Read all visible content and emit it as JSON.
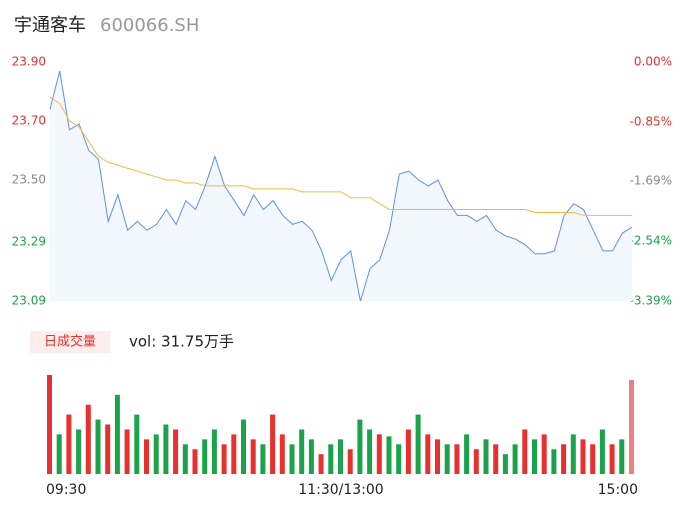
{
  "chart_data": {
    "type": "line",
    "title": "宇通客车",
    "subtitle": "600066.SH",
    "x": [
      0,
      4,
      8,
      12,
      16,
      20,
      24,
      28,
      32,
      36,
      40,
      44,
      48,
      52,
      56,
      60,
      64,
      68,
      72,
      76,
      80,
      84,
      88,
      92,
      96,
      100,
      104,
      108,
      112,
      116,
      120,
      124,
      128,
      132,
      136,
      140,
      144,
      148,
      152,
      156,
      160,
      164,
      168,
      172,
      176,
      180,
      184,
      188,
      192,
      196,
      200,
      204,
      208,
      212,
      216,
      220,
      224,
      228,
      232,
      236,
      240
    ],
    "xlim": [
      0,
      240
    ],
    "xticks": [
      {
        "value": 0,
        "label": "09:30"
      },
      {
        "value": 120,
        "label": "11:30/13:00"
      },
      {
        "value": 240,
        "label": "15:00"
      }
    ],
    "series": [
      {
        "color": "#5b8ff9",
        "values": [
          23.74,
          23.87,
          23.67,
          23.69,
          23.6,
          23.57,
          23.36,
          23.45,
          23.33,
          23.36,
          23.33,
          23.35,
          23.4,
          23.35,
          23.43,
          23.4,
          23.48,
          23.58,
          23.48,
          23.43,
          23.38,
          23.45,
          23.4,
          23.43,
          23.38,
          23.35,
          23.36,
          23.33,
          23.26,
          23.16,
          23.23,
          23.26,
          23.09,
          23.2,
          23.23,
          23.33,
          23.52,
          23.53,
          23.5,
          23.48,
          23.5,
          23.43,
          23.38,
          23.38,
          23.36,
          23.38,
          23.33,
          23.31,
          23.3,
          23.28,
          23.25,
          23.25,
          23.26,
          23.38,
          23.42,
          23.4,
          23.33,
          23.26,
          23.26,
          23.32,
          23.34
        ]
      },
      {
        "color": "#f5b942",
        "values": [
          23.78,
          23.76,
          23.7,
          23.68,
          23.63,
          23.58,
          23.56,
          23.55,
          23.54,
          23.53,
          23.52,
          23.51,
          23.5,
          23.5,
          23.49,
          23.49,
          23.48,
          23.48,
          23.48,
          23.48,
          23.48,
          23.47,
          23.47,
          23.47,
          23.47,
          23.47,
          23.46,
          23.46,
          23.46,
          23.46,
          23.46,
          23.44,
          23.44,
          23.44,
          23.42,
          23.4,
          23.4,
          23.4,
          23.4,
          23.4,
          23.4,
          23.4,
          23.4,
          23.4,
          23.4,
          23.4,
          23.4,
          23.4,
          23.4,
          23.4,
          23.39,
          23.39,
          23.39,
          23.39,
          23.39,
          23.38,
          23.38,
          23.38,
          23.38,
          23.38,
          23.38
        ]
      }
    ],
    "ylim": [
      23.09,
      23.9
    ],
    "yticks": [
      {
        "value": 23.9,
        "label": "23.90"
      },
      {
        "value": 23.7,
        "label": "23.70"
      },
      {
        "value": 23.5,
        "label": "23.50"
      },
      23.29,
      23.09
    ],
    "y2lim": [
      -3.39,
      0
    ],
    "y2ticks": [
      {
        "value": 0,
        "label": "0.00%"
      },
      {
        "value": -0.85,
        "label": "-0.85%"
      },
      {
        "value": -1.69,
        "label": "-1.69%"
      },
      {
        "value": -2.54,
        "label": "-2.54%"
      },
      {
        "value": -3.39,
        "label": "-3.39%"
      }
    ],
    "tick_colors": [
      "#e8312f",
      "#e8312f",
      "#888888",
      "#1aa34a",
      "#1aa34a"
    ],
    "volume": {
      "label": "日成交量",
      "text": "vol: 31.75万手",
      "ylim": [
        0,
        100
      ],
      "values": [
        100,
        40,
        60,
        45,
        70,
        55,
        50,
        80,
        45,
        60,
        35,
        40,
        50,
        45,
        30,
        25,
        35,
        45,
        30,
        40,
        55,
        35,
        30,
        60,
        40,
        30,
        45,
        35,
        20,
        30,
        35,
        25,
        55,
        45,
        40,
        38,
        30,
        45,
        60,
        40,
        35,
        30,
        30,
        40,
        25,
        35,
        30,
        20,
        30,
        45,
        35,
        40,
        25,
        30,
        40,
        35,
        30,
        45,
        30,
        35,
        95
      ],
      "colors": [
        "#e8312f",
        "#1aa34a",
        "#e8312f",
        "#1aa34a",
        "#e8312f",
        "#1aa34a",
        "#e8312f",
        "#1aa34a",
        "#e8312f",
        "#1aa34a",
        "#e8312f",
        "#1aa34a",
        "#1aa34a",
        "#e8312f",
        "#1aa34a",
        "#e8312f",
        "#1aa34a",
        "#1aa34a",
        "#e8312f",
        "#e8312f",
        "#1aa34a",
        "#e8312f",
        "#1aa34a",
        "#e8312f",
        "#e8312f",
        "#1aa34a",
        "#1aa34a",
        "#1aa34a",
        "#e8312f",
        "#1aa34a",
        "#1aa34a",
        "#e8312f",
        "#1aa34a",
        "#1aa34a",
        "#e8312f",
        "#1aa34a",
        "#1aa34a",
        "#e8312f",
        "#1aa34a",
        "#e8312f",
        "#e8312f",
        "#1aa34a",
        "#e8312f",
        "#1aa34a",
        "#e8312f",
        "#1aa34a",
        "#e8312f",
        "#1aa34a",
        "#1aa34a",
        "#e8312f",
        "#1aa34a",
        "#e8312f",
        "#1aa34a",
        "#e8312f",
        "#1aa34a",
        "#e8312f",
        "#e8312f",
        "#1aa34a",
        "#e8312f",
        "#1aa34a",
        "#f08080"
      ]
    }
  }
}
